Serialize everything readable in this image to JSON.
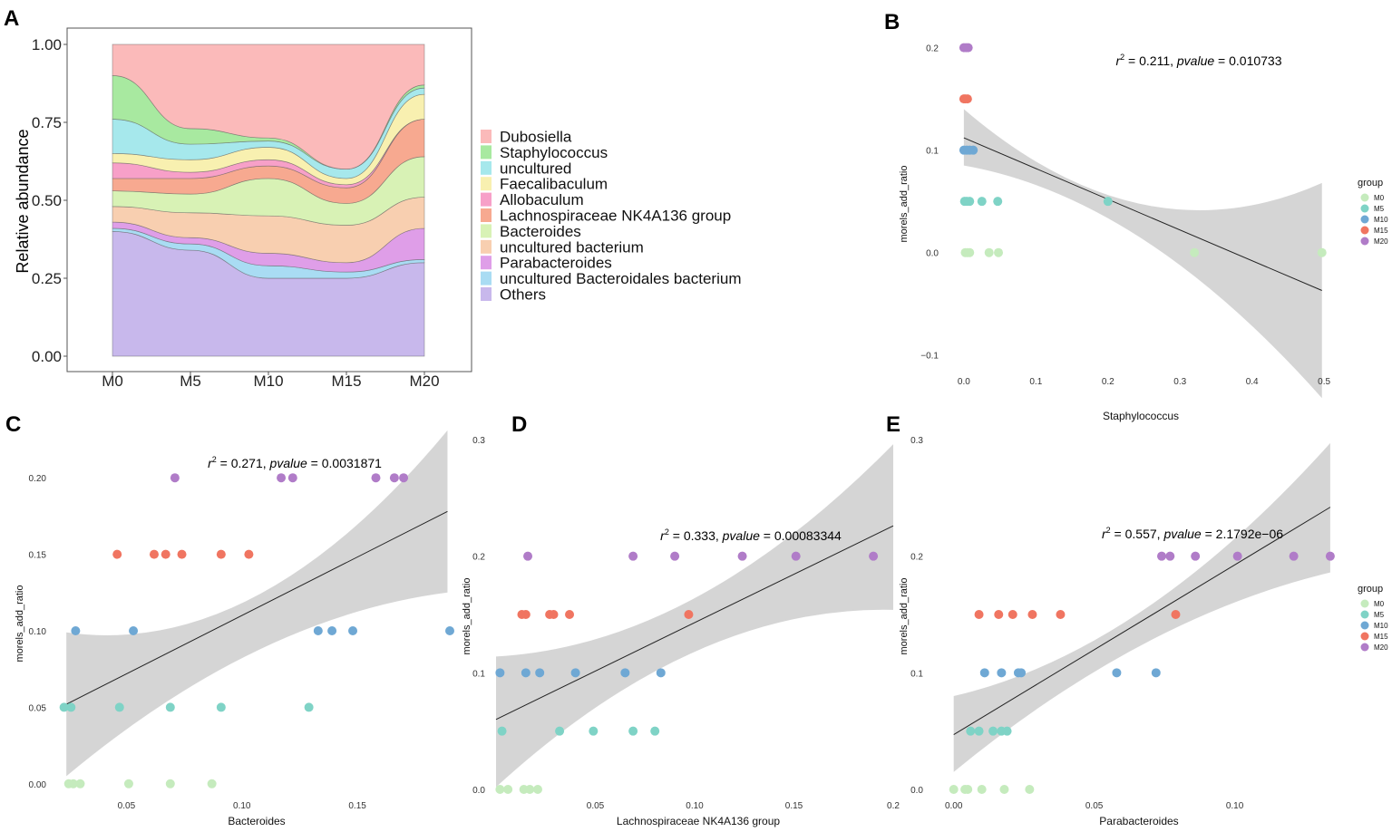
{
  "panels": {
    "A": {
      "letter": "A"
    },
    "B": {
      "letter": "B"
    },
    "C": {
      "letter": "C"
    },
    "D": {
      "letter": "D"
    },
    "E": {
      "letter": "E"
    }
  },
  "colors": {
    "M0": "#c5ebbd",
    "M5": "#7fd3c6",
    "M10": "#6fa8d4",
    "M15": "#f07561",
    "M20": "#b07cc8",
    "ci_band": "#d3d3d3",
    "fit_line": "#222222"
  },
  "chart_data": [
    {
      "id": "A",
      "type": "area",
      "title": "",
      "xlabel": "",
      "ylabel": "Relative abundance",
      "categories": [
        "M0",
        "M5",
        "M10",
        "M15",
        "M20"
      ],
      "ylim": [
        0,
        1
      ],
      "yticks": [
        "0.00",
        "0.25",
        "0.50",
        "0.75",
        "1.00"
      ],
      "legend_position": "right",
      "series": [
        {
          "name": "Others",
          "color": "#c8b8ec",
          "values": [
            0.4,
            0.34,
            0.25,
            0.25,
            0.3
          ]
        },
        {
          "name": "uncultured Bacteroidales bacterium",
          "color": "#a9dcf3",
          "values": [
            0.01,
            0.02,
            0.04,
            0.02,
            0.01
          ]
        },
        {
          "name": "Parabacteroides",
          "color": "#df9ee8",
          "values": [
            0.02,
            0.02,
            0.04,
            0.03,
            0.1
          ]
        },
        {
          "name": "uncultured bacterium",
          "color": "#f8cfb0",
          "values": [
            0.05,
            0.08,
            0.12,
            0.12,
            0.1
          ]
        },
        {
          "name": "Bacteroides",
          "color": "#d8f2b5",
          "values": [
            0.05,
            0.06,
            0.12,
            0.07,
            0.13
          ]
        },
        {
          "name": "Lachnospiraceae NK4A136 group",
          "color": "#f7a990",
          "values": [
            0.04,
            0.05,
            0.04,
            0.05,
            0.12
          ]
        },
        {
          "name": "Allobaculum",
          "color": "#f7a0c8",
          "values": [
            0.05,
            0.02,
            0.02,
            0.01,
            0.0
          ]
        },
        {
          "name": "Faecalibaculum",
          "color": "#f8f0b0",
          "values": [
            0.03,
            0.04,
            0.04,
            0.02,
            0.08
          ]
        },
        {
          "name": "uncultured",
          "color": "#a6e8ec",
          "values": [
            0.11,
            0.05,
            0.02,
            0.03,
            0.02
          ]
        },
        {
          "name": "Staphylococcus",
          "color": "#a8e9a0",
          "values": [
            0.14,
            0.05,
            0.01,
            0.0,
            0.01
          ]
        },
        {
          "name": "Dubosiella",
          "color": "#fbbaba",
          "values": [
            0.1,
            0.27,
            0.3,
            0.4,
            0.13
          ]
        }
      ],
      "legend": [
        "Dubosiella",
        "Staphylococcus",
        "uncultured",
        "Faecalibaculum",
        "Allobaculum",
        "Lachnospiraceae NK4A136 group",
        "Bacteroides",
        "uncultured bacterium",
        "Parabacteroides",
        "uncultured Bacteroidales bacterium",
        "Others"
      ]
    },
    {
      "id": "B",
      "type": "scatter",
      "xlabel": "Staphylococcus",
      "ylabel": "morels_add_ratio",
      "stat_r2": "= 0.211,",
      "stat_p": "= 0.010733",
      "xlim": [
        -0.02,
        0.52
      ],
      "ylim": [
        -0.125,
        0.22
      ],
      "xticks": [
        0.0,
        0.1,
        0.2,
        0.3,
        0.4,
        0.5
      ],
      "xtick_labels": [
        "0.0",
        "0.1",
        "0.2",
        "0.3",
        "0.4",
        "0.5"
      ],
      "yticks": [
        -0.1,
        0.0,
        0.1,
        0.2
      ],
      "ytick_labels": [
        "−0.1",
        "0.0",
        "0.1",
        "0.2"
      ],
      "fit": {
        "x0": 0.0,
        "y0": 0.112,
        "x1": 0.497,
        "y1": -0.037
      },
      "band": {
        "lower0": 0.085,
        "upper0": 0.14,
        "lowerMid": 0.013,
        "upperMid": 0.047,
        "lower1": -0.142,
        "upper1": 0.068
      },
      "show_legend": true,
      "points": [
        {
          "x": 0.002,
          "y": 0.0,
          "g": "M0"
        },
        {
          "x": 0.005,
          "y": 0.0,
          "g": "M0"
        },
        {
          "x": 0.008,
          "y": 0.0,
          "g": "M0"
        },
        {
          "x": 0.035,
          "y": 0.0,
          "g": "M0"
        },
        {
          "x": 0.048,
          "y": 0.0,
          "g": "M0"
        },
        {
          "x": 0.32,
          "y": 0.0,
          "g": "M0"
        },
        {
          "x": 0.497,
          "y": 0.0,
          "g": "M0"
        },
        {
          "x": 0.001,
          "y": 0.05,
          "g": "M5"
        },
        {
          "x": 0.004,
          "y": 0.05,
          "g": "M5"
        },
        {
          "x": 0.008,
          "y": 0.05,
          "g": "M5"
        },
        {
          "x": 0.025,
          "y": 0.05,
          "g": "M5"
        },
        {
          "x": 0.047,
          "y": 0.05,
          "g": "M5"
        },
        {
          "x": 0.2,
          "y": 0.05,
          "g": "M5"
        },
        {
          "x": 0.0,
          "y": 0.1,
          "g": "M10"
        },
        {
          "x": 0.004,
          "y": 0.1,
          "g": "M10"
        },
        {
          "x": 0.008,
          "y": 0.1,
          "g": "M10"
        },
        {
          "x": 0.013,
          "y": 0.1,
          "g": "M10"
        },
        {
          "x": 0.0,
          "y": 0.15,
          "g": "M15"
        },
        {
          "x": 0.002,
          "y": 0.15,
          "g": "M15"
        },
        {
          "x": 0.005,
          "y": 0.15,
          "g": "M15"
        },
        {
          "x": 0.0,
          "y": 0.2,
          "g": "M20"
        },
        {
          "x": 0.003,
          "y": 0.2,
          "g": "M20"
        },
        {
          "x": 0.006,
          "y": 0.2,
          "g": "M20"
        }
      ]
    },
    {
      "id": "C",
      "type": "scatter",
      "xlabel": "Bacteroides",
      "ylabel": "morels_add_ratio",
      "stat_r2": "= 0.271,",
      "stat_p": "= 0.0031871",
      "xlim": [
        0.02,
        0.19
      ],
      "ylim": [
        -0.009,
        0.225
      ],
      "xticks": [
        0.05,
        0.1,
        0.15
      ],
      "xtick_labels": [
        "0.05",
        "0.10",
        "0.15"
      ],
      "yticks": [
        0.0,
        0.05,
        0.1,
        0.15,
        0.2
      ],
      "ytick_labels": [
        "0.00",
        "0.05",
        "0.10",
        "0.15",
        "0.20"
      ],
      "fit": {
        "x0": 0.024,
        "y0": 0.052,
        "x1": 0.189,
        "y1": 0.178
      },
      "band": {
        "lower0": 0.005,
        "upper0": 0.099,
        "lowerMid": 0.087,
        "upperMid": 0.123,
        "lower1": 0.125,
        "upper1": 0.231
      },
      "show_legend": false,
      "points": [
        {
          "x": 0.025,
          "y": 0.0,
          "g": "M0"
        },
        {
          "x": 0.027,
          "y": 0.0,
          "g": "M0"
        },
        {
          "x": 0.03,
          "y": 0.0,
          "g": "M0"
        },
        {
          "x": 0.051,
          "y": 0.0,
          "g": "M0"
        },
        {
          "x": 0.069,
          "y": 0.0,
          "g": "M0"
        },
        {
          "x": 0.087,
          "y": 0.0,
          "g": "M0"
        },
        {
          "x": 0.023,
          "y": 0.05,
          "g": "M5"
        },
        {
          "x": 0.026,
          "y": 0.05,
          "g": "M5"
        },
        {
          "x": 0.047,
          "y": 0.05,
          "g": "M5"
        },
        {
          "x": 0.069,
          "y": 0.05,
          "g": "M5"
        },
        {
          "x": 0.091,
          "y": 0.05,
          "g": "M5"
        },
        {
          "x": 0.129,
          "y": 0.05,
          "g": "M5"
        },
        {
          "x": 0.028,
          "y": 0.1,
          "g": "M10"
        },
        {
          "x": 0.053,
          "y": 0.1,
          "g": "M10"
        },
        {
          "x": 0.133,
          "y": 0.1,
          "g": "M10"
        },
        {
          "x": 0.139,
          "y": 0.1,
          "g": "M10"
        },
        {
          "x": 0.148,
          "y": 0.1,
          "g": "M10"
        },
        {
          "x": 0.19,
          "y": 0.1,
          "g": "M10"
        },
        {
          "x": 0.046,
          "y": 0.15,
          "g": "M15"
        },
        {
          "x": 0.062,
          "y": 0.15,
          "g": "M15"
        },
        {
          "x": 0.067,
          "y": 0.15,
          "g": "M15"
        },
        {
          "x": 0.074,
          "y": 0.15,
          "g": "M15"
        },
        {
          "x": 0.091,
          "y": 0.15,
          "g": "M15"
        },
        {
          "x": 0.103,
          "y": 0.15,
          "g": "M15"
        },
        {
          "x": 0.071,
          "y": 0.2,
          "g": "M20"
        },
        {
          "x": 0.117,
          "y": 0.2,
          "g": "M20"
        },
        {
          "x": 0.122,
          "y": 0.2,
          "g": "M20"
        },
        {
          "x": 0.158,
          "y": 0.2,
          "g": "M20"
        },
        {
          "x": 0.166,
          "y": 0.2,
          "g": "M20"
        },
        {
          "x": 0.17,
          "y": 0.2,
          "g": "M20"
        }
      ]
    },
    {
      "id": "D",
      "type": "scatter",
      "xlabel": "Lachnospiraceae NK4A136 group",
      "ylabel": "morels_add_ratio",
      "stat_r2": "= 0.333,",
      "stat_p": "= 0.00083344",
      "xlim": [
        0.0,
        0.2
      ],
      "ylim": [
        -0.007,
        0.3
      ],
      "xticks": [
        0.05,
        0.1,
        0.15,
        0.2
      ],
      "xtick_labels": [
        "0.05",
        "0.10",
        "0.15",
        "0.2"
      ],
      "yticks": [
        0.0,
        0.1,
        0.2,
        0.3
      ],
      "ytick_labels": [
        "0.0",
        "0.1",
        "0.2",
        "0.3"
      ],
      "fit": {
        "x0": 0.0,
        "y0": 0.06,
        "x1": 0.2,
        "y1": 0.226
      },
      "band": {
        "lower0": 0.002,
        "upper0": 0.114,
        "lowerMid": 0.118,
        "upperMid": 0.164,
        "lower1": 0.154,
        "upper1": 0.296
      },
      "show_legend": false,
      "points": [
        {
          "x": 0.002,
          "y": 0.0,
          "g": "M0"
        },
        {
          "x": 0.006,
          "y": 0.0,
          "g": "M0"
        },
        {
          "x": 0.014,
          "y": 0.0,
          "g": "M0"
        },
        {
          "x": 0.017,
          "y": 0.0,
          "g": "M0"
        },
        {
          "x": 0.021,
          "y": 0.0,
          "g": "M0"
        },
        {
          "x": 0.003,
          "y": 0.05,
          "g": "M5"
        },
        {
          "x": 0.032,
          "y": 0.05,
          "g": "M5"
        },
        {
          "x": 0.049,
          "y": 0.05,
          "g": "M5"
        },
        {
          "x": 0.069,
          "y": 0.05,
          "g": "M5"
        },
        {
          "x": 0.08,
          "y": 0.05,
          "g": "M5"
        },
        {
          "x": 0.002,
          "y": 0.1,
          "g": "M10"
        },
        {
          "x": 0.015,
          "y": 0.1,
          "g": "M10"
        },
        {
          "x": 0.022,
          "y": 0.1,
          "g": "M10"
        },
        {
          "x": 0.04,
          "y": 0.1,
          "g": "M10"
        },
        {
          "x": 0.065,
          "y": 0.1,
          "g": "M10"
        },
        {
          "x": 0.083,
          "y": 0.1,
          "g": "M10"
        },
        {
          "x": 0.013,
          "y": 0.15,
          "g": "M15"
        },
        {
          "x": 0.015,
          "y": 0.15,
          "g": "M15"
        },
        {
          "x": 0.027,
          "y": 0.15,
          "g": "M15"
        },
        {
          "x": 0.029,
          "y": 0.15,
          "g": "M15"
        },
        {
          "x": 0.037,
          "y": 0.15,
          "g": "M15"
        },
        {
          "x": 0.097,
          "y": 0.15,
          "g": "M15"
        },
        {
          "x": 0.016,
          "y": 0.2,
          "g": "M20"
        },
        {
          "x": 0.069,
          "y": 0.2,
          "g": "M20"
        },
        {
          "x": 0.09,
          "y": 0.2,
          "g": "M20"
        },
        {
          "x": 0.124,
          "y": 0.2,
          "g": "M20"
        },
        {
          "x": 0.151,
          "y": 0.2,
          "g": "M20"
        },
        {
          "x": 0.19,
          "y": 0.2,
          "g": "M20"
        }
      ]
    },
    {
      "id": "E",
      "type": "scatter",
      "xlabel": "Parabacteroides",
      "ylabel": "morels_add_ratio",
      "stat_r2": "= 0.557,",
      "stat_p": "= 2.1792e−06",
      "xlim": [
        -0.007,
        0.135
      ],
      "ylim": [
        -0.007,
        0.3
      ],
      "xticks": [
        0.0,
        0.05,
        0.1
      ],
      "xtick_labels": [
        "0.00",
        "0.05",
        "0.10"
      ],
      "yticks": [
        0.0,
        0.1,
        0.2,
        0.3
      ],
      "ytick_labels": [
        "0.0",
        "0.1",
        "0.2",
        "0.3"
      ],
      "fit": {
        "x0": 0.0,
        "y0": 0.047,
        "x1": 0.134,
        "y1": 0.242
      },
      "band": {
        "lower0": 0.015,
        "upper0": 0.08,
        "lowerMid": 0.124,
        "upperMid": 0.153,
        "lower1": 0.186,
        "upper1": 0.297
      },
      "show_legend": true,
      "points": [
        {
          "x": 0.0,
          "y": 0.0,
          "g": "M0"
        },
        {
          "x": 0.004,
          "y": 0.0,
          "g": "M0"
        },
        {
          "x": 0.005,
          "y": 0.0,
          "g": "M0"
        },
        {
          "x": 0.01,
          "y": 0.0,
          "g": "M0"
        },
        {
          "x": 0.018,
          "y": 0.0,
          "g": "M0"
        },
        {
          "x": 0.027,
          "y": 0.0,
          "g": "M0"
        },
        {
          "x": 0.006,
          "y": 0.05,
          "g": "M5"
        },
        {
          "x": 0.009,
          "y": 0.05,
          "g": "M5"
        },
        {
          "x": 0.014,
          "y": 0.05,
          "g": "M5"
        },
        {
          "x": 0.017,
          "y": 0.05,
          "g": "M5"
        },
        {
          "x": 0.019,
          "y": 0.05,
          "g": "M5"
        },
        {
          "x": 0.011,
          "y": 0.1,
          "g": "M10"
        },
        {
          "x": 0.017,
          "y": 0.1,
          "g": "M10"
        },
        {
          "x": 0.023,
          "y": 0.1,
          "g": "M10"
        },
        {
          "x": 0.024,
          "y": 0.1,
          "g": "M10"
        },
        {
          "x": 0.058,
          "y": 0.1,
          "g": "M10"
        },
        {
          "x": 0.072,
          "y": 0.1,
          "g": "M10"
        },
        {
          "x": 0.009,
          "y": 0.15,
          "g": "M15"
        },
        {
          "x": 0.016,
          "y": 0.15,
          "g": "M15"
        },
        {
          "x": 0.021,
          "y": 0.15,
          "g": "M15"
        },
        {
          "x": 0.028,
          "y": 0.15,
          "g": "M15"
        },
        {
          "x": 0.038,
          "y": 0.15,
          "g": "M15"
        },
        {
          "x": 0.079,
          "y": 0.15,
          "g": "M15"
        },
        {
          "x": 0.074,
          "y": 0.2,
          "g": "M20"
        },
        {
          "x": 0.077,
          "y": 0.2,
          "g": "M20"
        },
        {
          "x": 0.086,
          "y": 0.2,
          "g": "M20"
        },
        {
          "x": 0.101,
          "y": 0.2,
          "g": "M20"
        },
        {
          "x": 0.121,
          "y": 0.2,
          "g": "M20"
        },
        {
          "x": 0.134,
          "y": 0.2,
          "g": "M20"
        }
      ]
    }
  ],
  "legend_groups": {
    "title": "group",
    "items": [
      "M0",
      "M5",
      "M10",
      "M15",
      "M20"
    ]
  }
}
